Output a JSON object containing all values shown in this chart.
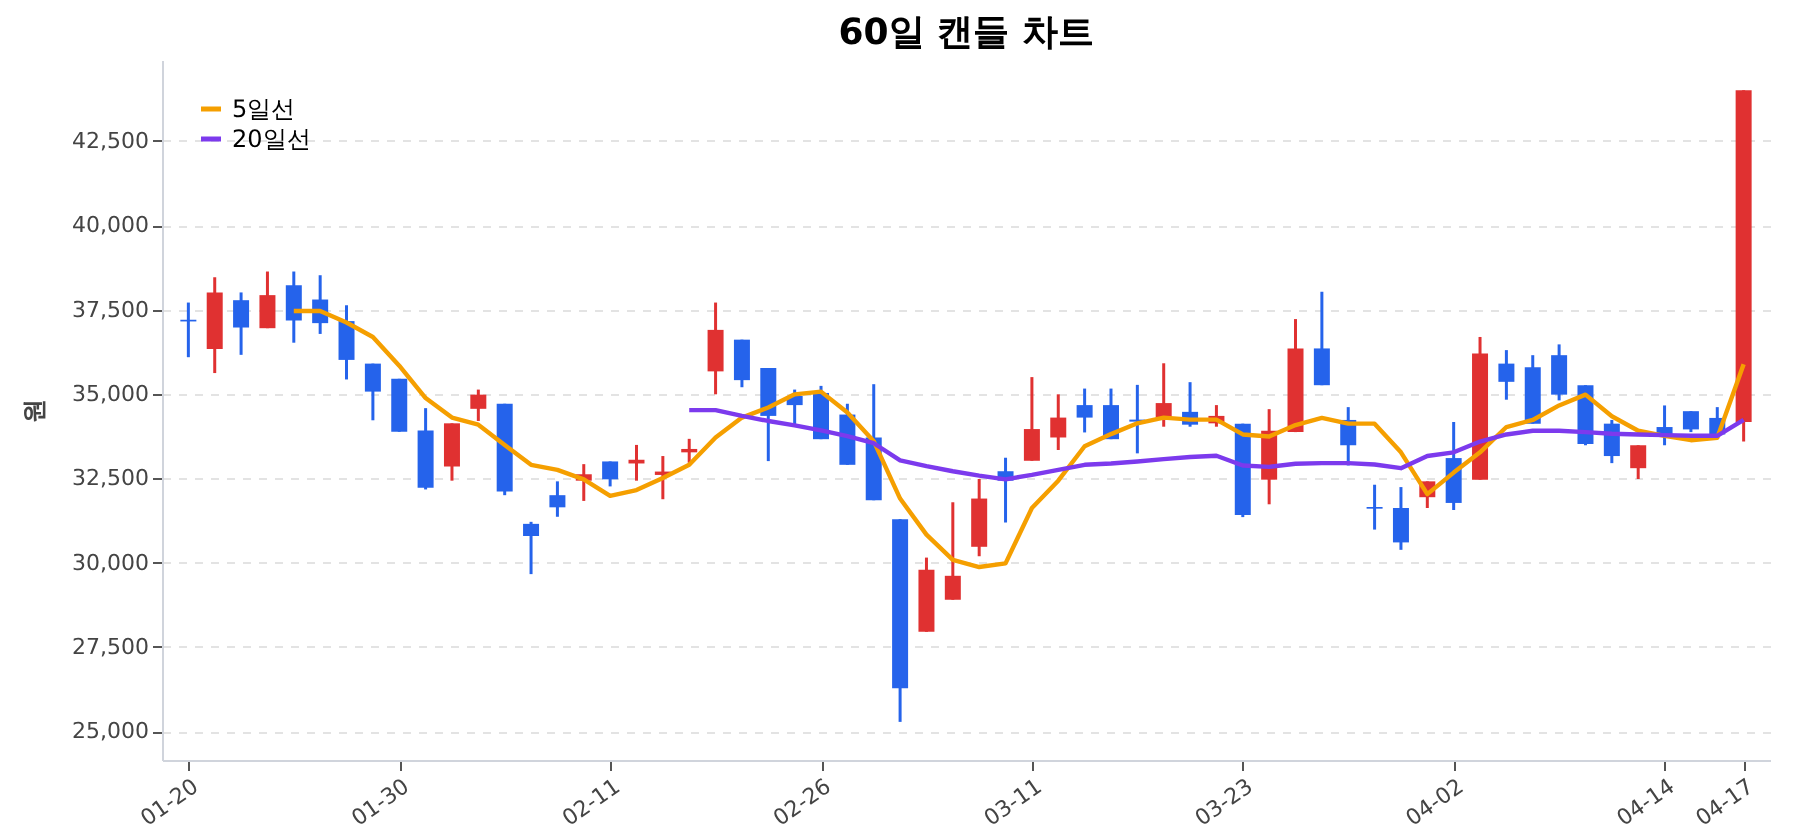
{
  "chart_data": {
    "type": "candlestick",
    "title": "60일 캔들 차트",
    "ylabel": "원",
    "categories": [
      "01-20",
      null,
      null,
      null,
      null,
      null,
      null,
      null,
      "01-30",
      null,
      null,
      null,
      null,
      null,
      null,
      null,
      "02-11",
      null,
      null,
      null,
      null,
      null,
      null,
      null,
      "02-26",
      null,
      null,
      null,
      null,
      null,
      null,
      null,
      "03-11",
      null,
      null,
      null,
      null,
      null,
      null,
      null,
      "03-23",
      null,
      null,
      null,
      null,
      null,
      null,
      null,
      "04-02",
      null,
      null,
      null,
      null,
      null,
      null,
      null,
      "04-14",
      null,
      null,
      "04-17"
    ],
    "ohlc": [
      [
        37200,
        37710,
        36090,
        37150
      ],
      [
        36330,
        38460,
        35620,
        38010
      ],
      [
        37780,
        38010,
        36160,
        36970
      ],
      [
        36950,
        38630,
        36950,
        37930
      ],
      [
        38220,
        38630,
        36520,
        37180
      ],
      [
        37800,
        38520,
        36780,
        37100
      ],
      [
        37160,
        37630,
        35430,
        36010
      ],
      [
        35900,
        35900,
        34220,
        35070
      ],
      [
        35450,
        35450,
        33880,
        33880
      ],
      [
        33920,
        34580,
        32170,
        32220
      ],
      [
        32850,
        34130,
        32430,
        34130
      ],
      [
        34560,
        35130,
        34200,
        34980
      ],
      [
        34710,
        34710,
        32000,
        32110
      ],
      [
        31150,
        31210,
        29660,
        30790
      ],
      [
        32000,
        32410,
        31360,
        31640
      ],
      [
        32430,
        32920,
        31830,
        32620
      ],
      [
        33000,
        33000,
        32260,
        32470
      ],
      [
        32940,
        33490,
        32430,
        33050
      ],
      [
        32600,
        33160,
        31880,
        32700
      ],
      [
        33270,
        33670,
        32960,
        33370
      ],
      [
        35670,
        37710,
        34990,
        36900
      ],
      [
        36610,
        36610,
        35200,
        35410
      ],
      [
        35770,
        35770,
        33010,
        34350
      ],
      [
        34940,
        35130,
        34090,
        34670
      ],
      [
        35030,
        35240,
        33660,
        33660
      ],
      [
        34390,
        34710,
        32900,
        32900
      ],
      [
        33710,
        35290,
        31850,
        31850
      ],
      [
        31290,
        31290,
        25280,
        26280
      ],
      [
        27950,
        30150,
        27950,
        29790
      ],
      [
        28900,
        31790,
        28900,
        29610
      ],
      [
        30470,
        32480,
        30190,
        31900
      ],
      [
        32710,
        33110,
        31190,
        32430
      ],
      [
        33020,
        35500,
        33020,
        33960
      ],
      [
        33710,
        34990,
        33340,
        34300
      ],
      [
        34670,
        35160,
        33860,
        34300
      ],
      [
        34670,
        35160,
        33660,
        33660
      ],
      [
        34240,
        35270,
        33240,
        34180
      ],
      [
        34300,
        35910,
        34030,
        34730
      ],
      [
        34470,
        35350,
        34030,
        34090
      ],
      [
        34130,
        34670,
        34030,
        34350
      ],
      [
        34120,
        34120,
        31350,
        31410
      ],
      [
        32460,
        34550,
        31730,
        33910
      ],
      [
        33870,
        37220,
        33870,
        36350
      ],
      [
        36350,
        38030,
        35260,
        35260
      ],
      [
        34230,
        34610,
        32880,
        33480
      ],
      [
        31650,
        32310,
        30980,
        31600
      ],
      [
        31620,
        32240,
        30380,
        30600
      ],
      [
        31940,
        32410,
        31620,
        32410
      ],
      [
        33100,
        34170,
        31560,
        31770
      ],
      [
        32460,
        36690,
        32460,
        36200
      ],
      [
        35900,
        36300,
        34830,
        35360
      ],
      [
        35790,
        36150,
        34120,
        34120
      ],
      [
        36150,
        36470,
        34810,
        34980
      ],
      [
        35260,
        35260,
        33480,
        33520
      ],
      [
        34120,
        34230,
        32950,
        33160
      ],
      [
        32800,
        33480,
        32480,
        33480
      ],
      [
        34020,
        34660,
        33480,
        33740
      ],
      [
        34490,
        34490,
        33870,
        33950
      ],
      [
        34290,
        34610,
        33800,
        33800
      ],
      [
        34170,
        44000,
        33590,
        44000
      ]
    ],
    "colors": [
      "#2563eb",
      "#e03131",
      "#2563eb",
      "#e03131",
      "#2563eb",
      "#2563eb",
      "#2563eb",
      "#2563eb",
      "#2563eb",
      "#2563eb",
      "#e03131",
      "#e03131",
      "#2563eb",
      "#2563eb",
      "#2563eb",
      "#e03131",
      "#2563eb",
      "#e03131",
      "#e03131",
      "#e03131",
      "#e03131",
      "#2563eb",
      "#2563eb",
      "#2563eb",
      "#2563eb",
      "#2563eb",
      "#2563eb",
      "#2563eb",
      "#e03131",
      "#e03131",
      "#e03131",
      "#2563eb",
      "#e03131",
      "#e03131",
      "#2563eb",
      "#2563eb",
      "#2563eb",
      "#e03131",
      "#2563eb",
      "#e03131",
      "#2563eb",
      "#e03131",
      "#e03131",
      "#2563eb",
      "#2563eb",
      "#2563eb",
      "#2563eb",
      "#e03131",
      "#2563eb",
      "#e03131",
      "#2563eb",
      "#2563eb",
      "#2563eb",
      "#2563eb",
      "#2563eb",
      "#e03131",
      "#2563eb",
      "#2563eb",
      "#2563eb",
      "#e03131"
    ],
    "series": [
      {
        "name": "5일선",
        "type": "line",
        "color": "#f59f00",
        "values": [
          null,
          null,
          null,
          null,
          37460,
          37460,
          37120,
          36690,
          35840,
          34880,
          34300,
          34090,
          33490,
          32900,
          32750,
          32470,
          31980,
          32150,
          32510,
          32900,
          33710,
          34300,
          34600,
          34990,
          35070,
          34450,
          33600,
          31900,
          30830,
          30080,
          29870,
          29980,
          31620,
          32430,
          33450,
          33810,
          34130,
          34300,
          34240,
          34240,
          33800,
          33740,
          34080,
          34290,
          34120,
          34120,
          33270,
          32030,
          32670,
          33270,
          34020,
          34230,
          34660,
          34980,
          34340,
          33910,
          33760,
          33630,
          33700,
          35880
        ]
      },
      {
        "name": "20일선",
        "type": "line",
        "color": "#7c3aed",
        "values": [
          null,
          null,
          null,
          null,
          null,
          null,
          null,
          null,
          null,
          null,
          null,
          null,
          null,
          null,
          null,
          null,
          null,
          null,
          null,
          34520,
          34520,
          34350,
          34200,
          34070,
          33920,
          33750,
          33540,
          33030,
          32860,
          32710,
          32580,
          32470,
          32600,
          32750,
          32900,
          32940,
          33000,
          33070,
          33130,
          33170,
          32880,
          32840,
          32930,
          32950,
          32950,
          32910,
          32800,
          33160,
          33270,
          33590,
          33800,
          33910,
          33910,
          33870,
          33820,
          33800,
          33780,
          33760,
          33760,
          34230
        ]
      }
    ],
    "ylim": [
      24150,
      44900
    ],
    "yticks": [
      {
        "value": 25000,
        "label": "25,000"
      },
      {
        "value": 27500,
        "label": "27,500"
      },
      {
        "value": 30000,
        "label": "30,000"
      },
      {
        "value": 32500,
        "label": "32,500"
      },
      {
        "value": 35000,
        "label": "35,000"
      },
      {
        "value": 37500,
        "label": "37,500"
      },
      {
        "value": 40000,
        "label": "40,000"
      },
      {
        "value": 42500,
        "label": "42,500"
      }
    ],
    "grid": "y",
    "legend": "top left"
  }
}
